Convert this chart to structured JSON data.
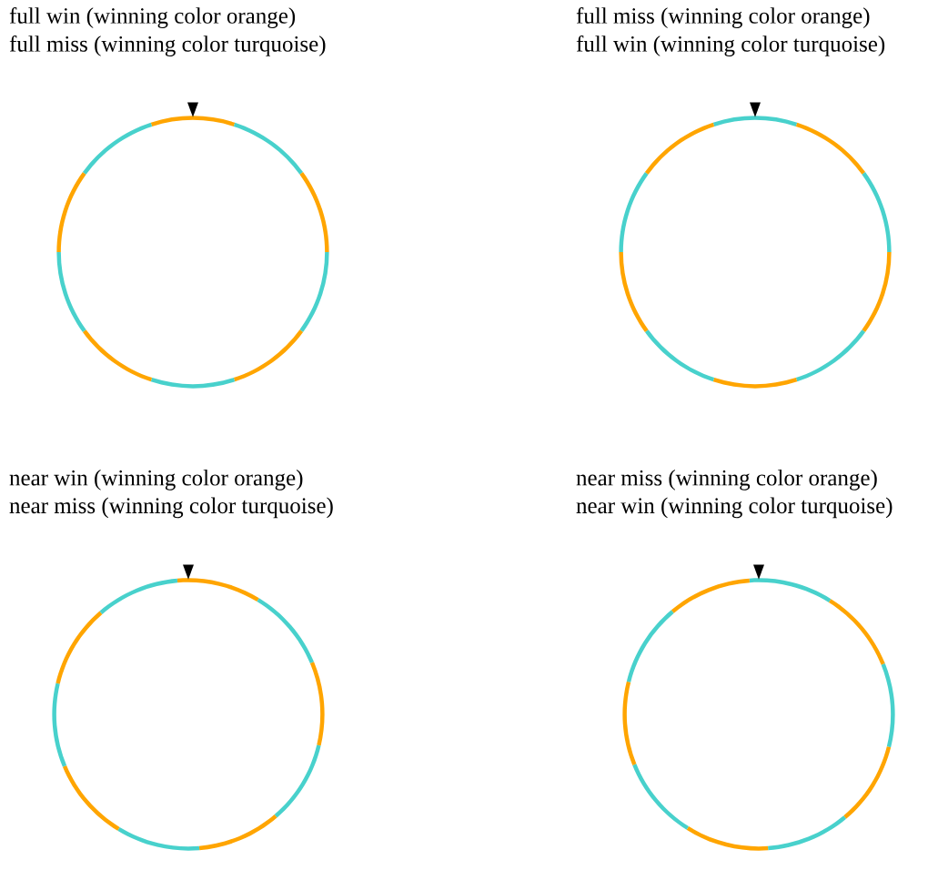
{
  "chart_data": [
    {
      "type": "donut",
      "title": "full win (winning color orange)\nfull miss (winning color turquoise)",
      "categories": [
        null,
        null,
        null,
        null,
        null,
        null,
        null,
        null,
        null,
        null
      ],
      "values": [
        10,
        10,
        10,
        10,
        10,
        10,
        10,
        10,
        10,
        10
      ],
      "colors": [
        "#ffa500",
        "#48d1cc",
        "#ffa500",
        "#48d1cc",
        "#ffa500",
        "#48d1cc",
        "#ffa500",
        "#48d1cc",
        "#ffa500",
        "#48d1cc"
      ]
    },
    {
      "type": "donut",
      "title": "full miss (winning color orange)\nfull win (winning color turquoise)",
      "categories": [
        null,
        null,
        null,
        null,
        null,
        null,
        null,
        null,
        null,
        null
      ],
      "values": [
        10,
        10,
        10,
        10,
        10,
        10,
        10,
        10,
        10,
        10
      ],
      "colors": [
        "#48d1cc",
        "#ffa500",
        "#48d1cc",
        "#ffa500",
        "#48d1cc",
        "#ffa500",
        "#48d1cc",
        "#ffa500",
        "#48d1cc",
        "#ffa500"
      ]
    },
    {
      "type": "donut",
      "title": "near win (winning color orange)\nnear miss (winning color turquoise)",
      "categories": [
        null,
        null,
        null,
        null,
        null,
        null,
        null,
        null,
        null,
        null
      ],
      "values": [
        10,
        10,
        10,
        10,
        10,
        10,
        10,
        10,
        10,
        10
      ],
      "colors": [
        "#ffa500",
        "#48d1cc",
        "#ffa500",
        "#48d1cc",
        "#ffa500",
        "#48d1cc",
        "#ffa500",
        "#48d1cc",
        "#ffa500",
        "#48d1cc"
      ]
    },
    {
      "type": "donut",
      "title": "near miss (winning color orange)\nnear win (winning color turquoise)",
      "categories": [
        null,
        null,
        null,
        null,
        null,
        null,
        null,
        null,
        null,
        null
      ],
      "values": [
        10,
        10,
        10,
        10,
        10,
        10,
        10,
        10,
        10,
        10
      ],
      "colors": [
        "#48d1cc",
        "#ffa500",
        "#48d1cc",
        "#ffa500",
        "#48d1cc",
        "#ffa500",
        "#48d1cc",
        "#ffa500",
        "#48d1cc",
        "#ffa500"
      ]
    }
  ]
}
